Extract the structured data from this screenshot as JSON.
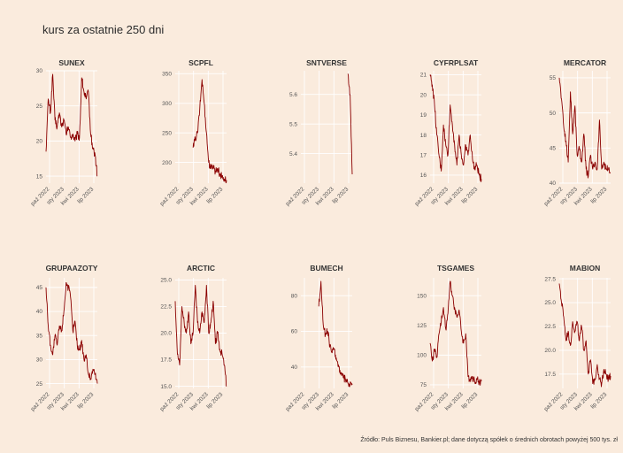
{
  "page": {
    "title": "kurs za ostatnie 250 dni",
    "caption": "Źródło: Puls Biznesu, Bankier.pl; dane dotyczą spółek o średnich obrotach powyżej 500 tys. zł"
  },
  "colors": {
    "background": "#FAEBDD",
    "line": "#8B0000",
    "grid": "#FFFFFF"
  },
  "chart_data": [
    {
      "type": "line",
      "title": "SUNEX",
      "x_labels": [
        "paź 2022",
        "sty 2023",
        "kwi 2023",
        "lip 2023"
      ],
      "y_ticks": [
        "15",
        "20",
        "25",
        "30"
      ],
      "ylim": [
        14,
        30
      ],
      "x_start": "2022-08",
      "x_end": "2023-08",
      "values": [
        18.5,
        26,
        24,
        29.5,
        23,
        22,
        24,
        22,
        23,
        21,
        22,
        20.5,
        21,
        20,
        21,
        20.5,
        29,
        27,
        26,
        27,
        21,
        19,
        18,
        15
      ]
    },
    {
      "type": "line",
      "title": "SCPFL",
      "x_labels": [
        "paź 2022",
        "sty 2023",
        "kwi 2023",
        "lip 2023"
      ],
      "y_ticks": [
        "200",
        "250",
        "300",
        "350"
      ],
      "ylim": [
        165,
        355
      ],
      "x_start": "2022-08",
      "x_end": "2023-08",
      "values": [
        null,
        null,
        null,
        null,
        null,
        null,
        null,
        null,
        225,
        240,
        250,
        290,
        340,
        300,
        250,
        200,
        190,
        195,
        185,
        190,
        180,
        176,
        172,
        170
      ]
    },
    {
      "type": "line",
      "title": "SNTVERSE",
      "x_labels": [
        "paź 2022",
        "sty 2023",
        "kwi 2023",
        "lip 2023"
      ],
      "y_ticks": [
        "5.4",
        "5.5",
        "5.6"
      ],
      "ylim": [
        5.3,
        5.68
      ],
      "x_start": "2022-08",
      "x_end": "2023-08",
      "values": [
        null,
        null,
        null,
        null,
        null,
        null,
        null,
        null,
        null,
        null,
        null,
        null,
        null,
        null,
        null,
        null,
        null,
        null,
        null,
        null,
        null,
        null,
        5.67,
        5.6,
        5.33
      ]
    },
    {
      "type": "line",
      "title": "CYFRPLSAT",
      "x_labels": [
        "paź 2022",
        "sty 2023",
        "kwi 2023",
        "lip 2023"
      ],
      "y_ticks": [
        "16",
        "17",
        "18",
        "19",
        "20",
        "21"
      ],
      "ylim": [
        15.6,
        21.2
      ],
      "x_start": "2022-08",
      "x_end": "2023-08",
      "values": [
        21,
        20.5,
        19.5,
        18,
        17,
        16.2,
        18.5,
        17.5,
        17,
        19.5,
        18.5,
        17.5,
        16.5,
        18,
        17,
        16.5,
        17.5,
        17,
        18,
        16.8,
        16.3,
        16.5,
        16,
        15.8
      ]
    },
    {
      "type": "line",
      "title": "MERCATOR",
      "x_labels": [
        "paź 2022",
        "sty 2023",
        "kwi 2023",
        "lip 2023"
      ],
      "y_ticks": [
        "40",
        "45",
        "50",
        "55"
      ],
      "ylim": [
        40,
        56
      ],
      "x_start": "2022-08",
      "x_end": "2023-08",
      "values": [
        55,
        52,
        48,
        46,
        43,
        53,
        47,
        51,
        44,
        45,
        43,
        47,
        42,
        41,
        44,
        42,
        43,
        42,
        49,
        42,
        43,
        42,
        42,
        41.5
      ]
    },
    {
      "type": "line",
      "title": "GRUPAAZOTY",
      "x_labels": [
        "paź 2022",
        "sty 2023",
        "kwi 2023",
        "lip 2023"
      ],
      "y_ticks": [
        "25",
        "30",
        "35",
        "40",
        "45"
      ],
      "ylim": [
        24,
        47
      ],
      "x_start": "2022-08",
      "x_end": "2023-08",
      "values": [
        45,
        37,
        33,
        31,
        35,
        33,
        37,
        36,
        40,
        46,
        45,
        43,
        36,
        38,
        33,
        32,
        34,
        30,
        31,
        27,
        26,
        28,
        27,
        25
      ]
    },
    {
      "type": "line",
      "title": "ARCTIC",
      "x_labels": [
        "paź 2022",
        "sty 2023",
        "kwi 2023",
        "lip 2023"
      ],
      "y_ticks": [
        "15.0",
        "17.5",
        "20.0",
        "22.5",
        "25.0"
      ],
      "ylim": [
        14.8,
        25.2
      ],
      "x_start": "2022-08",
      "x_end": "2023-08",
      "values": [
        23,
        18,
        17,
        22.5,
        21,
        20,
        22,
        19,
        20,
        24.5,
        21,
        20,
        22,
        21,
        24.5,
        20,
        21,
        23,
        19,
        20,
        18.5,
        18,
        17,
        15
      ]
    },
    {
      "type": "line",
      "title": "BUMECH",
      "x_labels": [
        "paź 2022",
        "sty 2023",
        "kwi 2023",
        "lip 2023"
      ],
      "y_ticks": [
        "40",
        "60",
        "80"
      ],
      "ylim": [
        28,
        90
      ],
      "x_start": "2022-08",
      "x_end": "2023-08",
      "values": [
        null,
        null,
        null,
        null,
        null,
        null,
        null,
        null,
        74,
        88,
        64,
        58,
        60,
        52,
        48,
        50,
        44,
        40,
        36,
        34,
        33,
        31,
        30,
        30
      ]
    },
    {
      "type": "line",
      "title": "TSGAMES",
      "x_labels": [
        "paź 2022",
        "sty 2023",
        "kwi 2023",
        "lip 2023"
      ],
      "y_ticks": [
        "75",
        "100",
        "125",
        "150"
      ],
      "ylim": [
        72,
        165
      ],
      "x_start": "2022-08",
      "x_end": "2023-08",
      "values": [
        110,
        95,
        105,
        98,
        118,
        128,
        140,
        122,
        135,
        162,
        150,
        140,
        132,
        138,
        120,
        110,
        118,
        82,
        80,
        82,
        78,
        80,
        77,
        78
      ]
    },
    {
      "type": "line",
      "title": "MABION",
      "x_labels": [
        "paź 2022",
        "sty 2023",
        "kwi 2023",
        "lip 2023"
      ],
      "y_ticks": [
        "17.5",
        "20.0",
        "22.5",
        "25.0",
        "27.5"
      ],
      "ylim": [
        16,
        27.6
      ],
      "x_start": "2022-08",
      "x_end": "2023-08",
      "values": [
        27,
        25,
        23.5,
        21,
        22,
        20.5,
        23,
        22,
        23,
        21,
        22.5,
        20,
        21,
        17.5,
        19,
        16.5,
        17,
        18.5,
        17,
        16.5,
        18,
        17.5,
        17,
        17.3
      ]
    }
  ]
}
